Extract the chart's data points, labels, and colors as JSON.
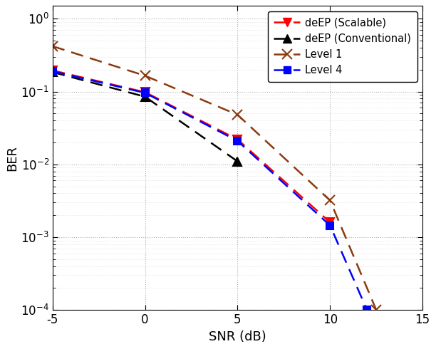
{
  "title": "",
  "xlabel": "SNR (dB)",
  "ylabel": "BER",
  "xlim": [
    -5,
    15
  ],
  "ylim": [
    0.0001,
    1.5
  ],
  "background_color": "#ffffff",
  "series": [
    {
      "label": "deEP (Scalable)",
      "color": "#ff0000",
      "marker": "v",
      "markersize": 9,
      "snr": [
        -5,
        0,
        5,
        10
      ],
      "ber": [
        0.195,
        0.098,
        0.022,
        0.0016
      ]
    },
    {
      "label": "deEP (Conventional)",
      "color": "#000000",
      "marker": "^",
      "markersize": 9,
      "snr": [
        -5,
        0,
        5
      ],
      "ber": [
        0.185,
        0.085,
        0.011
      ]
    },
    {
      "label": "Level 1",
      "color": "#8B3A0F",
      "marker": "x",
      "markersize": 10,
      "snr": [
        -5,
        0,
        5,
        10,
        12.5
      ],
      "ber": [
        0.42,
        0.165,
        0.048,
        0.0032,
        0.0001
      ]
    },
    {
      "label": "Level 4",
      "color": "#0000ff",
      "marker": "s",
      "markersize": 7,
      "snr": [
        -5,
        0,
        5,
        10,
        12
      ],
      "ber": [
        0.19,
        0.096,
        0.021,
        0.00145,
        0.0001
      ]
    }
  ]
}
